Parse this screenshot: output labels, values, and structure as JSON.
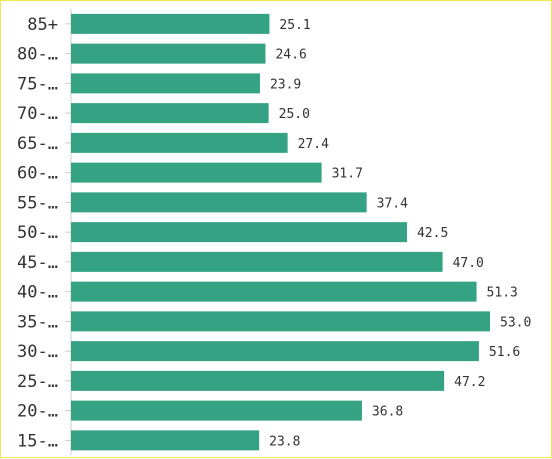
{
  "chart_data": {
    "type": "bar",
    "orientation": "horizontal",
    "title": "",
    "xlabel": "",
    "ylabel": "",
    "categories": [
      "85+",
      "80-…",
      "75-…",
      "70-…",
      "65-…",
      "60-…",
      "55-…",
      "50-…",
      "45-…",
      "40-…",
      "35-…",
      "30-…",
      "25-…",
      "20-…",
      "15-…"
    ],
    "values": [
      25.1,
      24.6,
      23.9,
      25.0,
      27.4,
      31.7,
      37.4,
      42.5,
      47.0,
      51.3,
      53.0,
      51.6,
      47.2,
      36.8,
      23.8
    ],
    "value_labels": [
      "25.1",
      "24.6",
      "23.9",
      "25.0",
      "27.4",
      "31.7",
      "37.4",
      "42.5",
      "47.0",
      "51.3",
      "53.0",
      "51.6",
      "47.2",
      "36.8",
      "23.8"
    ],
    "xlim": [
      0,
      53.0
    ],
    "bar_color": "#35a284",
    "axis_color": "#cccccc",
    "grid": false,
    "legend": "none"
  }
}
